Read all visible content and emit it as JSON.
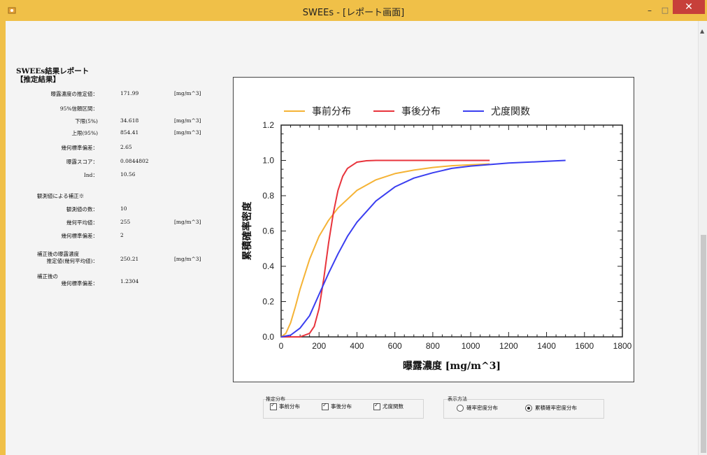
{
  "window": {
    "title": "SWEEs - [レポート画面]",
    "minimize": "–",
    "maximize": "□",
    "close": "✕"
  },
  "report": {
    "title_line1": "SWEEs結果レポート",
    "title_line2": "【推定結果】",
    "estimate_label": "曝露濃度の推定値：",
    "estimate_value": "171.99",
    "estimate_unit": "[mg/m^3]",
    "ci_label": "95%信頼区間：",
    "lower_label": "下限(5%)",
    "lower_value": "34.618",
    "lower_unit": "[mg/m^3]",
    "upper_label": "上限(95%)",
    "upper_value": "854.41",
    "upper_unit": "[mg/m^3]",
    "gsd_label": "幾何標準偏差：",
    "gsd_value": "2.65",
    "score_label": "曝露スコア：",
    "score_value": "0.0844802",
    "ind_label": "Ind：",
    "ind_value": "10.56",
    "correction_header": "観測値による補正※",
    "count_label": "観測値の数：",
    "count_value": "10",
    "gmean_label": "幾何平均値：",
    "gmean_value": "255",
    "gmean_unit": "[mg/m^3]",
    "gstd_label": "幾何標準偏差：",
    "gstd_value": "2",
    "post_est_label_1": "補正後の曝露濃度",
    "post_est_label_2": "推定値(幾何平均値)：",
    "post_est_value": "250.21",
    "post_est_unit": "[mg/m^3]",
    "post_gsd_label_1": "補正後の",
    "post_gsd_label_2": "幾何標準偏差：",
    "post_gsd_value": "1.2304"
  },
  "chart_data": {
    "type": "line",
    "xlabel": "曝露濃度 [mg/m^3]",
    "ylabel": "累積確率密度",
    "xlim": [
      0,
      1800
    ],
    "ylim": [
      0,
      1.2
    ],
    "x_ticks": [
      0,
      200,
      400,
      600,
      800,
      1000,
      1200,
      1400,
      1600,
      1800
    ],
    "y_ticks": [
      "0.0",
      "0.2",
      "0.4",
      "0.6",
      "0.8",
      "1.0",
      "1.2"
    ],
    "legend_position": "top",
    "grid": false,
    "series": [
      {
        "name": "事前分布",
        "color": "#f5b335",
        "x": [
          0,
          25,
          50,
          75,
          100,
          150,
          200,
          250,
          300,
          400,
          500,
          600,
          700,
          800,
          900,
          1000,
          1100
        ],
        "y": [
          0,
          0.02,
          0.08,
          0.17,
          0.27,
          0.44,
          0.57,
          0.66,
          0.73,
          0.83,
          0.89,
          0.925,
          0.945,
          0.96,
          0.97,
          0.975,
          0.98
        ]
      },
      {
        "name": "事後分布",
        "color": "#e8343c",
        "x": [
          0,
          100,
          150,
          175,
          200,
          225,
          250,
          275,
          300,
          325,
          350,
          400,
          450,
          500,
          600,
          800,
          1000,
          1100
        ],
        "y": [
          0,
          0.0,
          0.02,
          0.06,
          0.16,
          0.33,
          0.53,
          0.7,
          0.83,
          0.91,
          0.955,
          0.99,
          0.998,
          1.0,
          1.0,
          1.0,
          1.0,
          1.0
        ]
      },
      {
        "name": "尤度関数",
        "color": "#3a3ef0",
        "x": [
          0,
          50,
          100,
          150,
          200,
          250,
          300,
          350,
          400,
          500,
          600,
          700,
          800,
          900,
          1000,
          1200,
          1400,
          1500
        ],
        "y": [
          0,
          0.01,
          0.05,
          0.12,
          0.24,
          0.36,
          0.47,
          0.57,
          0.65,
          0.77,
          0.85,
          0.9,
          0.93,
          0.955,
          0.968,
          0.985,
          0.995,
          1.0
        ]
      }
    ]
  },
  "controls": {
    "dist_group_title": "推定分布",
    "prior_label": "事前分布",
    "posterior_label": "事後分布",
    "likelihood_label": "尤度関数",
    "display_group_title": "表示方法",
    "pdf_label": "確率密度分布",
    "cdf_label": "累積確率密度分布",
    "prior_checked": true,
    "posterior_checked": true,
    "likelihood_checked": true,
    "selected_display": "cdf"
  }
}
